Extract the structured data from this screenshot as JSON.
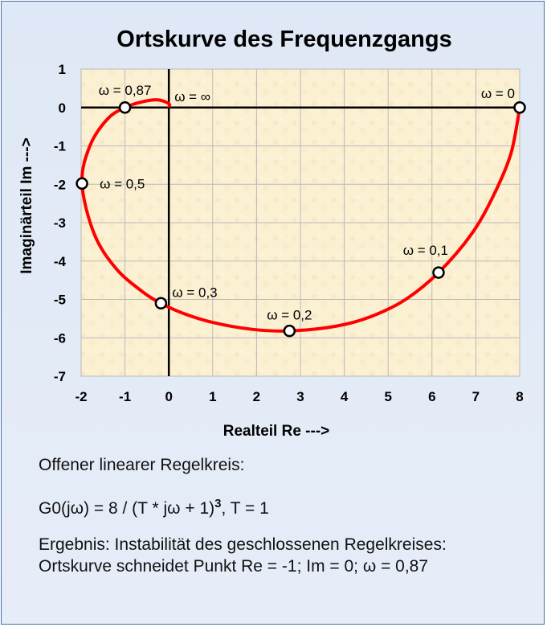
{
  "chart_data": {
    "type": "line",
    "title": "Ortskurve des Frequenzgangs",
    "xlabel": "Realteil Re --->",
    "ylabel": "Imaginärteil Im --->",
    "xlim": [
      -2,
      8
    ],
    "ylim": [
      -7,
      1
    ],
    "x_ticks": [
      "-2",
      "-1",
      "0",
      "1",
      "2",
      "3",
      "4",
      "5",
      "6",
      "7",
      "8"
    ],
    "y_ticks": [
      "1",
      "0",
      "-1",
      "-2",
      "-3",
      "-4",
      "-5",
      "-6",
      "-7"
    ],
    "grid": true,
    "series": [
      {
        "color": "#ff0000",
        "points": [
          [
            8.0,
            0.0
          ],
          [
            7.8,
            -1.2
          ],
          [
            7.4,
            -2.3
          ],
          [
            6.9,
            -3.3
          ],
          [
            6.15,
            -4.3
          ],
          [
            5.4,
            -5.0
          ],
          [
            4.6,
            -5.45
          ],
          [
            3.8,
            -5.7
          ],
          [
            2.75,
            -5.82
          ],
          [
            1.9,
            -5.78
          ],
          [
            1.0,
            -5.6
          ],
          [
            0.3,
            -5.35
          ],
          [
            -0.18,
            -5.1
          ],
          [
            -0.6,
            -4.8
          ],
          [
            -1.2,
            -4.2
          ],
          [
            -1.7,
            -3.3
          ],
          [
            -1.98,
            -1.98
          ],
          [
            -1.8,
            -1.0
          ],
          [
            -1.4,
            -0.3
          ],
          [
            -1.0,
            0.0
          ],
          [
            -0.6,
            0.15
          ],
          [
            -0.25,
            0.2
          ],
          [
            0.0,
            0.1
          ],
          [
            0.0,
            0.0
          ]
        ]
      }
    ],
    "markers": [
      {
        "re": 8.0,
        "im": 0.0,
        "label": "ω = 0"
      },
      {
        "re": 6.15,
        "im": -4.3,
        "label": "ω = 0,1"
      },
      {
        "re": 2.75,
        "im": -5.82,
        "label": "ω = 0,2"
      },
      {
        "re": -0.18,
        "im": -5.1,
        "label": "ω = 0,3"
      },
      {
        "re": -1.98,
        "im": -1.98,
        "label": "ω = 0,5"
      },
      {
        "re": -1.0,
        "im": 0.0,
        "label": "ω = 0,87"
      }
    ],
    "annotations": [
      {
        "re": 0.0,
        "im": 0.0,
        "label": "ω = ∞"
      }
    ]
  },
  "info": {
    "heading": "Offener linearer Regelkreis:",
    "formula_main": "G0(jω)  =  8 / (T * jω + 1)",
    "formula_exp": "3",
    "formula_tail": ",    T = 1",
    "result_line1": "Ergebnis: Instabilität des geschlossenen Regelkreises:",
    "result_line2": "Ortskurve schneidet Punkt Re = -1; Im = 0; ω = 0,87"
  },
  "colors": {
    "curve": "#ff0000",
    "plot_background": "#fbf0d2",
    "grid": "#b9b9b9",
    "frame_background": "#dfe8f6"
  }
}
